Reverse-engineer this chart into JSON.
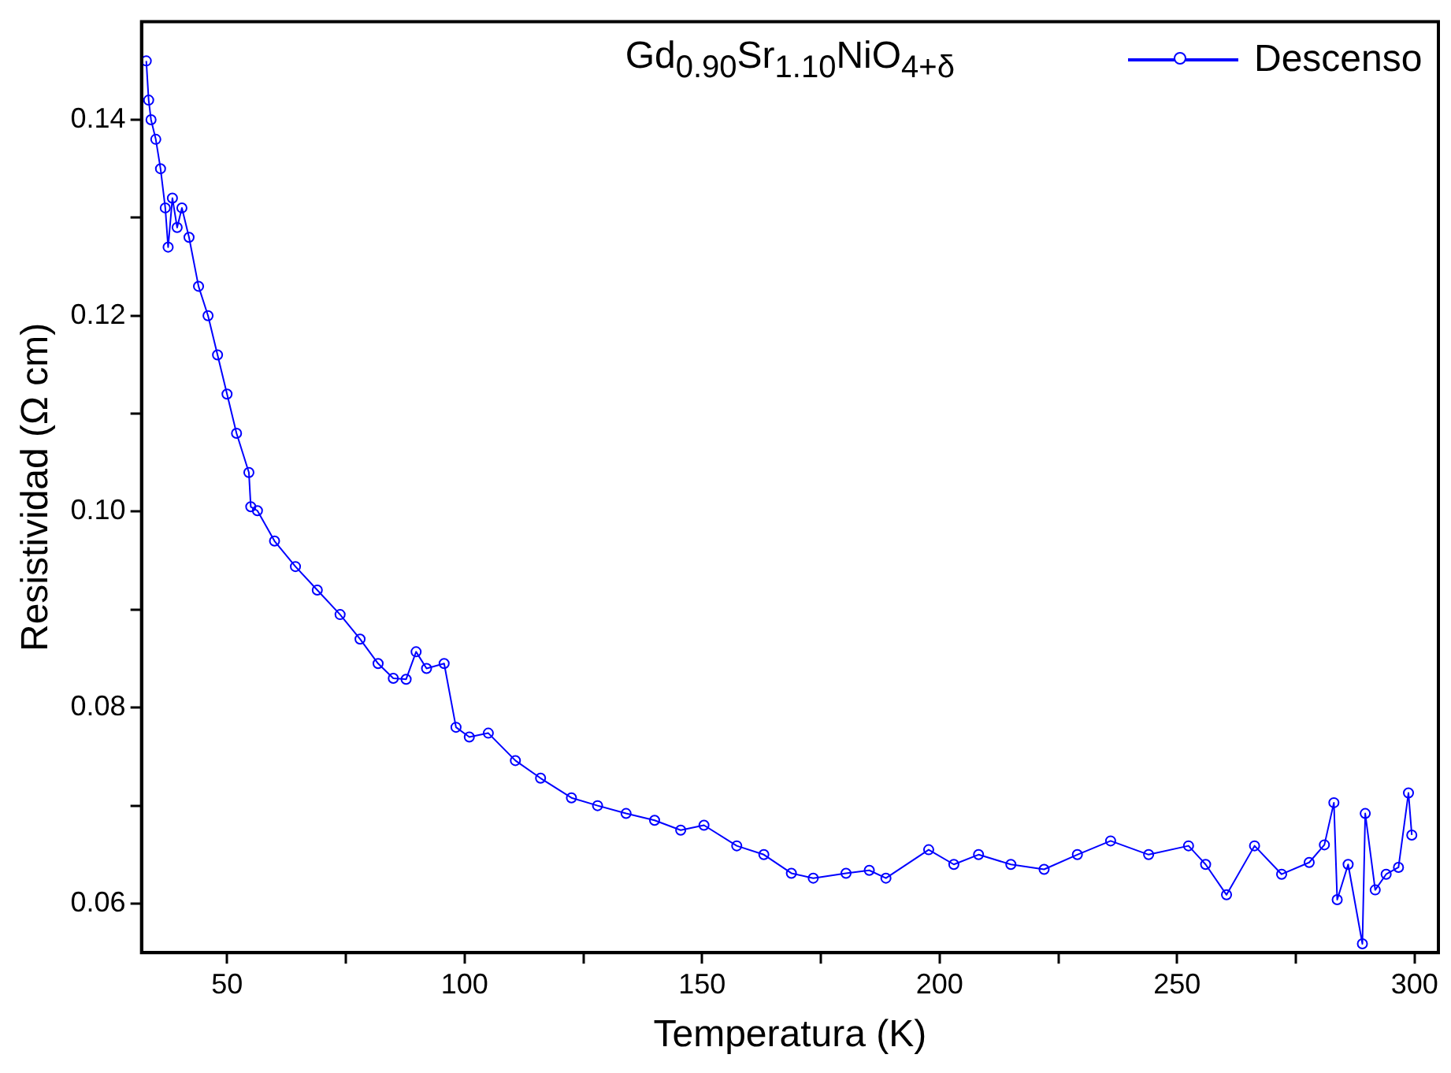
{
  "chart_data": {
    "type": "line",
    "title": "Gd$_{0.90}$Sr$_{1.10}$NiO$_{4+δ}$",
    "xlabel": "Temperatura (K)",
    "ylabel": "Resistividad (Ω cm)",
    "xlim": [
      32,
      305
    ],
    "xticks": [
      50,
      {
        "value": 75,
        "label": null
      },
      100,
      {
        "value": 125,
        "label": null
      },
      150,
      {
        "value": 175,
        "label": null
      },
      200,
      {
        "value": 225,
        "label": null
      },
      250,
      {
        "value": 275,
        "label": null
      },
      300
    ],
    "ylim": [
      0.055,
      0.15
    ],
    "yticks": [
      0.06,
      {
        "value": 0.07,
        "label": null
      },
      0.08,
      {
        "value": 0.09,
        "label": null
      },
      {
        "value": 0.1,
        "label": "0.10"
      },
      {
        "value": 0.11,
        "label": null
      },
      0.12,
      {
        "value": 0.13,
        "label": null
      },
      0.14
    ],
    "legend": "top right",
    "marker": "circle",
    "line_style": "solid",
    "grid": false,
    "series": [
      {
        "name": "Descenso",
        "color": "#0000ff",
        "x": [
          33,
          33.5,
          34,
          35,
          36,
          37,
          37.6,
          38.5,
          39.5,
          40.5,
          42,
          44,
          46,
          48,
          50,
          52,
          54.6,
          55,
          56.4,
          60,
          64.4,
          69,
          73.8,
          78,
          81.8,
          85,
          87.7,
          89.8,
          92,
          95.7,
          98.2,
          101,
          105,
          110.7,
          116,
          122.5,
          128,
          134,
          140,
          145.5,
          150.4,
          157.3,
          163,
          168.8,
          173.4,
          180.3,
          185.2,
          188.7,
          197.7,
          203,
          208.2,
          215,
          222,
          229,
          236,
          244,
          252.4,
          256,
          260.4,
          266.3,
          272,
          277.8,
          281,
          283,
          283.7,
          286,
          289,
          289.6,
          291.7,
          294,
          296.6,
          298.7,
          299.4
        ],
        "values": [
          0.146,
          0.142,
          0.14,
          0.138,
          0.135,
          0.131,
          0.127,
          0.132,
          0.129,
          0.131,
          0.128,
          0.123,
          0.12,
          0.116,
          0.112,
          0.108,
          0.104,
          0.1005,
          0.1001,
          0.097,
          0.0944,
          0.092,
          0.0895,
          0.087,
          0.0845,
          0.083,
          0.0829,
          0.0857,
          0.084,
          0.0845,
          0.078,
          0.077,
          0.0774,
          0.0746,
          0.0728,
          0.0708,
          0.07,
          0.0692,
          0.0685,
          0.0675,
          0.068,
          0.0659,
          0.065,
          0.0631,
          0.0626,
          0.0631,
          0.0634,
          0.0626,
          0.0655,
          0.064,
          0.065,
          0.064,
          0.0635,
          0.065,
          0.0664,
          0.065,
          0.0659,
          0.064,
          0.0609,
          0.0659,
          0.063,
          0.0642,
          0.066,
          0.0703,
          0.0604,
          0.064,
          0.0559,
          0.0692,
          0.0614,
          0.063,
          0.0637,
          0.0713,
          0.067
        ]
      }
    ]
  }
}
